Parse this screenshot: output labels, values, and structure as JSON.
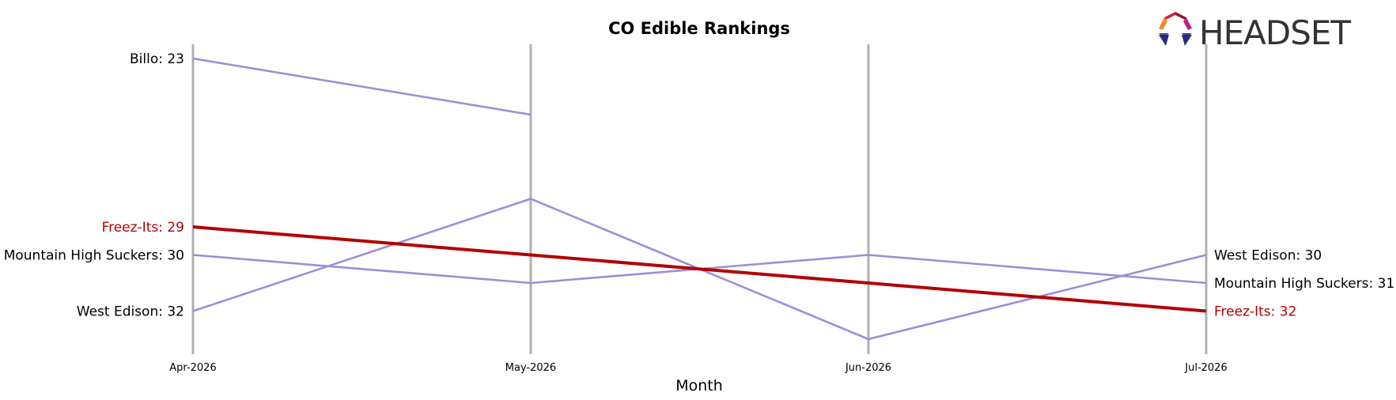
{
  "chart_data": {
    "type": "line",
    "title": "CO Edible Rankings",
    "xlabel": "Month",
    "ylabel": "",
    "categories": [
      "Apr-2026",
      "May-2026",
      "Jun-2026",
      "Jul-2026"
    ],
    "y_inverted": true,
    "ylim": [
      23,
      34
    ],
    "grid": "vertical lines at each month",
    "series": [
      {
        "name": "Billo",
        "values": [
          23,
          25,
          null,
          null
        ],
        "color": "#9b8fd9",
        "highlight": false
      },
      {
        "name": "Freez-Its",
        "values": [
          29,
          30,
          31,
          32
        ],
        "color": "#b30000",
        "highlight": true
      },
      {
        "name": "Mountain High Suckers",
        "values": [
          30,
          31,
          30,
          31
        ],
        "color": "#9b8fd9",
        "highlight": false
      },
      {
        "name": "West Edison",
        "values": [
          32,
          28,
          33,
          30
        ],
        "color": "#9b8fd9",
        "highlight": false
      }
    ],
    "left_labels": [
      {
        "text": "Billo: 23",
        "value": 23,
        "color": "#000000"
      },
      {
        "text": "Freez-Its: 29",
        "value": 29,
        "color": "#b30000"
      },
      {
        "text": "Mountain High Suckers: 30",
        "value": 30,
        "color": "#000000"
      },
      {
        "text": "West Edison: 32",
        "value": 32,
        "color": "#000000"
      }
    ],
    "right_labels": [
      {
        "text": "West Edison: 30",
        "value": 30,
        "color": "#000000"
      },
      {
        "text": "Mountain High Suckers: 31",
        "value": 31,
        "color": "#000000"
      },
      {
        "text": "Freez-Its: 32",
        "value": 32,
        "color": "#b30000"
      }
    ]
  },
  "logo": {
    "text": "HEADSET",
    "icon": "headset-logo-icon"
  }
}
